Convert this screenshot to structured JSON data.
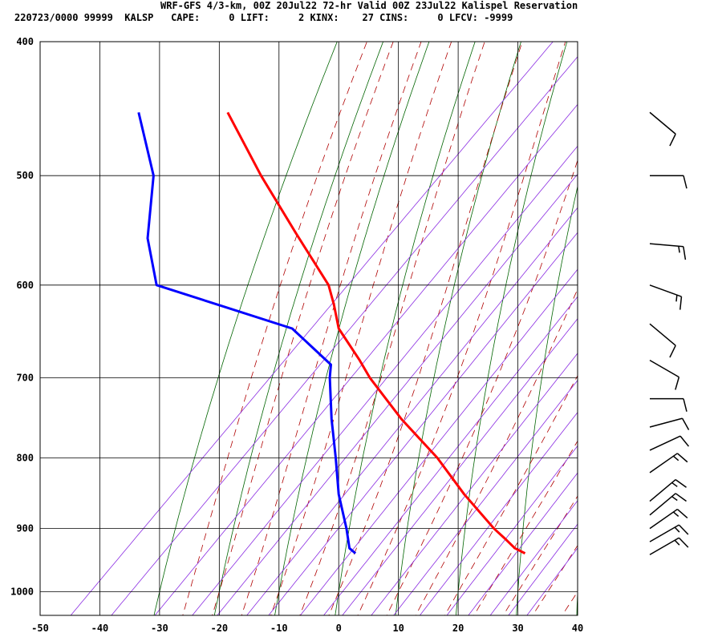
{
  "header": {
    "line1": "WRF-GFS 4/3-km, 00Z 20Jul22 72-hr Valid 00Z 23Jul22 Kalispel Reservation",
    "line2": "220723/0000 99999  KALSP   CAPE:     0 LIFT:     2 KINX:    27 CINS:     0 LFCV: -9999"
  },
  "chart_data": {
    "type": "line",
    "subtype": "skew-t log-p sounding",
    "title": "WRF-GFS 4/3-km, 00Z 20Jul22 72-hr Valid 00Z 23Jul22 Kalispel Reservation",
    "xlabel": "",
    "ylabel": "",
    "x_ticks": [
      -50,
      -40,
      -30,
      -20,
      -10,
      0,
      10,
      20,
      30,
      40
    ],
    "y_ticks": [
      400,
      500,
      600,
      700,
      800,
      900,
      1000
    ],
    "xlim": [
      -50,
      40
    ],
    "ylim_pressure": [
      1040,
      400
    ],
    "pressure_scale": "log",
    "grid": true,
    "colors": {
      "temperature": "#ff0000",
      "dewpoint": "#0000ff",
      "dry_adiabat": "#006400",
      "moist_adiabat": "#b00000",
      "mixing_ratio": "#8a2be2",
      "grid": "#000000"
    },
    "series": [
      {
        "color": "#ff0000",
        "points": [
          {
            "p": 938,
            "x": 31.2
          },
          {
            "p": 930,
            "x": 29.5
          },
          {
            "p": 915,
            "x": 27.8
          },
          {
            "p": 900,
            "x": 26.0
          },
          {
            "p": 850,
            "x": 21.0
          },
          {
            "p": 800,
            "x": 16.5
          },
          {
            "p": 750,
            "x": 10.5
          },
          {
            "p": 700,
            "x": 5.2
          },
          {
            "p": 680,
            "x": 3.5
          },
          {
            "p": 645,
            "x": 0.0
          },
          {
            "p": 620,
            "x": -0.8
          },
          {
            "p": 600,
            "x": -1.7
          },
          {
            "p": 550,
            "x": -7.2
          },
          {
            "p": 500,
            "x": -13.0
          },
          {
            "p": 450,
            "x": -18.6
          }
        ]
      },
      {
        "color": "#0000ff",
        "points": [
          {
            "p": 938,
            "x": 2.8
          },
          {
            "p": 930,
            "x": 1.8
          },
          {
            "p": 900,
            "x": 1.3
          },
          {
            "p": 850,
            "x": 0.0
          },
          {
            "p": 800,
            "x": -0.5
          },
          {
            "p": 750,
            "x": -1.2
          },
          {
            "p": 700,
            "x": -1.5
          },
          {
            "p": 685,
            "x": -1.3
          },
          {
            "p": 645,
            "x": -7.8
          },
          {
            "p": 600,
            "x": -30.5
          },
          {
            "p": 555,
            "x": -32.0
          },
          {
            "p": 500,
            "x": -31.0
          },
          {
            "p": 450,
            "x": -33.5
          }
        ]
      }
    ],
    "wind_barbs": [
      {
        "p": 940,
        "dir": 240,
        "kt": 15
      },
      {
        "p": 920,
        "dir": 240,
        "kt": 15
      },
      {
        "p": 900,
        "dir": 235,
        "kt": 15
      },
      {
        "p": 880,
        "dir": 230,
        "kt": 15
      },
      {
        "p": 860,
        "dir": 230,
        "kt": 15
      },
      {
        "p": 820,
        "dir": 235,
        "kt": 15
      },
      {
        "p": 790,
        "dir": 245,
        "kt": 10
      },
      {
        "p": 760,
        "dir": 255,
        "kt": 10
      },
      {
        "p": 725,
        "dir": 270,
        "kt": 10
      },
      {
        "p": 680,
        "dir": 300,
        "kt": 10
      },
      {
        "p": 640,
        "dir": 310,
        "kt": 10
      },
      {
        "p": 600,
        "dir": 290,
        "kt": 15
      },
      {
        "p": 560,
        "dir": 275,
        "kt": 15
      },
      {
        "p": 500,
        "dir": 270,
        "kt": 10
      },
      {
        "p": 450,
        "dir": 310,
        "kt": 10
      }
    ]
  }
}
